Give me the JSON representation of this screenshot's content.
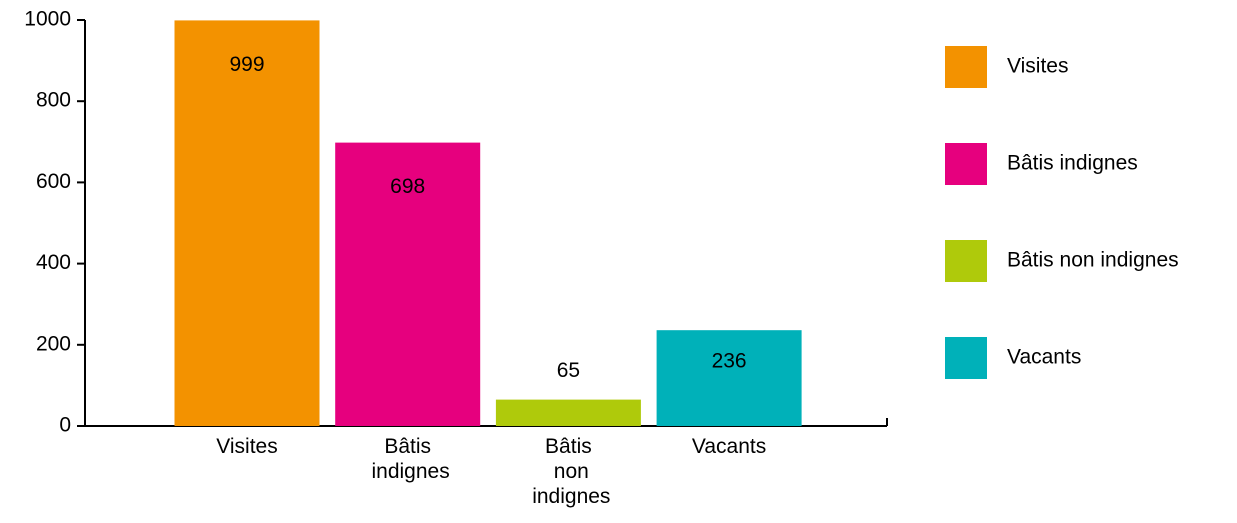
{
  "chart_data": {
    "type": "bar",
    "categories": [
      "Visites",
      "Bâtis indignes",
      "Bâtis non indignes",
      "Vacants"
    ],
    "values": [
      999,
      698,
      65,
      236
    ],
    "colors": [
      "#f39200",
      "#e6007e",
      "#afca0b",
      "#00b1b9"
    ],
    "ylim": [
      0,
      1000
    ],
    "yticks": [
      0,
      200,
      400,
      600,
      800,
      1000
    ],
    "legend": "right"
  }
}
